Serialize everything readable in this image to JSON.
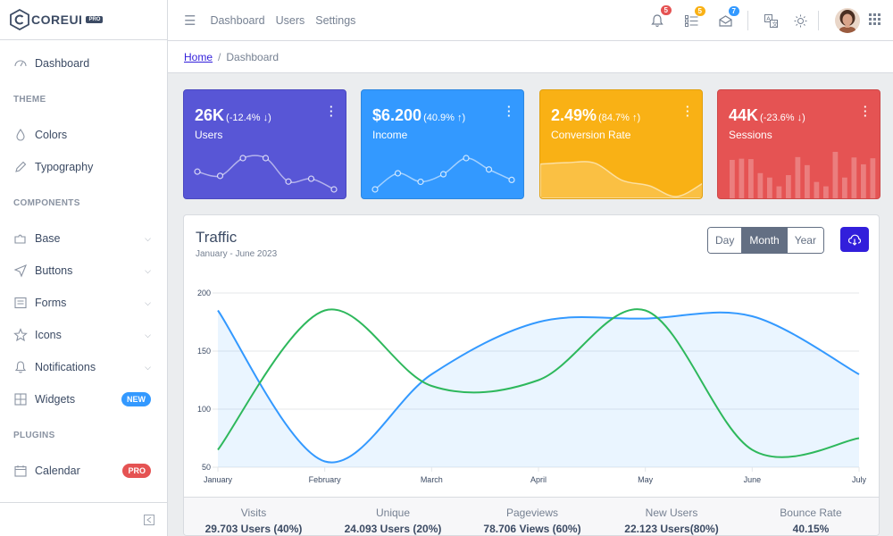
{
  "brand": {
    "name": "COREUI",
    "tag": "PRO"
  },
  "sidebar": {
    "items": [
      {
        "type": "item",
        "label": "Dashboard",
        "icon": "speedometer-icon"
      },
      {
        "type": "title",
        "label": "Theme"
      },
      {
        "type": "item",
        "label": "Colors",
        "icon": "drop-icon"
      },
      {
        "type": "item",
        "label": "Typography",
        "icon": "pencil-icon"
      },
      {
        "type": "title",
        "label": "Components"
      },
      {
        "type": "item",
        "label": "Base",
        "icon": "puzzle-icon",
        "chevron": true
      },
      {
        "type": "item",
        "label": "Buttons",
        "icon": "cursor-icon",
        "chevron": true
      },
      {
        "type": "item",
        "label": "Forms",
        "icon": "notes-icon",
        "chevron": true
      },
      {
        "type": "item",
        "label": "Icons",
        "icon": "star-icon",
        "chevron": true
      },
      {
        "type": "item",
        "label": "Notifications",
        "icon": "bell-icon",
        "chevron": true
      },
      {
        "type": "item",
        "label": "Widgets",
        "icon": "calculator-icon",
        "badge": "NEW",
        "badge_color": "#3399ff"
      },
      {
        "type": "title",
        "label": "Plugins"
      },
      {
        "type": "item",
        "label": "Calendar",
        "icon": "calendar-icon",
        "badge": "PRO",
        "badge_color": "#e55353"
      }
    ]
  },
  "header": {
    "nav": [
      "Dashboard",
      "Users",
      "Settings"
    ],
    "notifications": {
      "count": "5",
      "color": "#e55353"
    },
    "tasks": {
      "count": "5",
      "color": "#f9b115"
    },
    "messages": {
      "count": "7",
      "color": "#3399ff"
    }
  },
  "breadcrumb": {
    "home": "Home",
    "current": "Dashboard"
  },
  "widgets": [
    {
      "value": "26K",
      "delta": "(-12.4% ↓)",
      "label": "Users",
      "color": "#5856d6",
      "chart": "line",
      "data": [
        65,
        59,
        84,
        84,
        51,
        55,
        40
      ]
    },
    {
      "value": "$6.200",
      "delta": "(40.9% ↑)",
      "label": "Income",
      "color": "#3399ff",
      "chart": "line",
      "data": [
        1,
        18,
        9,
        17,
        34,
        22,
        11
      ]
    },
    {
      "value": "2.49%",
      "delta": "(84.7% ↑)",
      "label": "Conversion Rate",
      "color": "#f9b115",
      "chart": "area",
      "data": [
        78,
        81,
        80,
        45,
        34,
        12,
        40
      ]
    },
    {
      "value": "44K",
      "delta": "(-23.6% ↓)",
      "label": "Sessions",
      "color": "#e55353",
      "chart": "bar",
      "data": [
        78,
        81,
        80,
        45,
        34,
        12,
        40,
        85,
        65,
        23,
        12,
        98,
        34,
        84,
        67,
        82
      ]
    }
  ],
  "traffic": {
    "title": "Traffic",
    "subtitle": "January - June 2023",
    "buttons": [
      "Day",
      "Month",
      "Year"
    ],
    "active_button": "Month",
    "accent": "#321fdb"
  },
  "chart_data": {
    "type": "line",
    "x": [
      "January",
      "February",
      "March",
      "April",
      "May",
      "June",
      "July"
    ],
    "ylim": [
      50,
      200
    ],
    "yticks": [
      50,
      100,
      150,
      200
    ],
    "grid": true,
    "series": [
      {
        "color": "#39f",
        "fill": "rgba(51,153,255,0.1)",
        "values": [
          185,
          55,
          130,
          175,
          178,
          180,
          130
        ]
      },
      {
        "color": "#2eb85c",
        "values": [
          65,
          185,
          120,
          125,
          185,
          65,
          75
        ]
      }
    ]
  },
  "stats": [
    {
      "title": "Visits",
      "value": "29.703 Users (40%)",
      "color": "#2eb85c"
    },
    {
      "title": "Unique",
      "value": "24.093 Users (20%)",
      "color": "#39f"
    },
    {
      "title": "Pageviews",
      "value": "78.706 Views (60%)",
      "color": "#f9b115"
    },
    {
      "title": "New Users",
      "value": "22.123 Users(80%)",
      "color": "#e55353"
    },
    {
      "title": "Bounce Rate",
      "value": "40.15%",
      "color": "#321fdb"
    }
  ]
}
